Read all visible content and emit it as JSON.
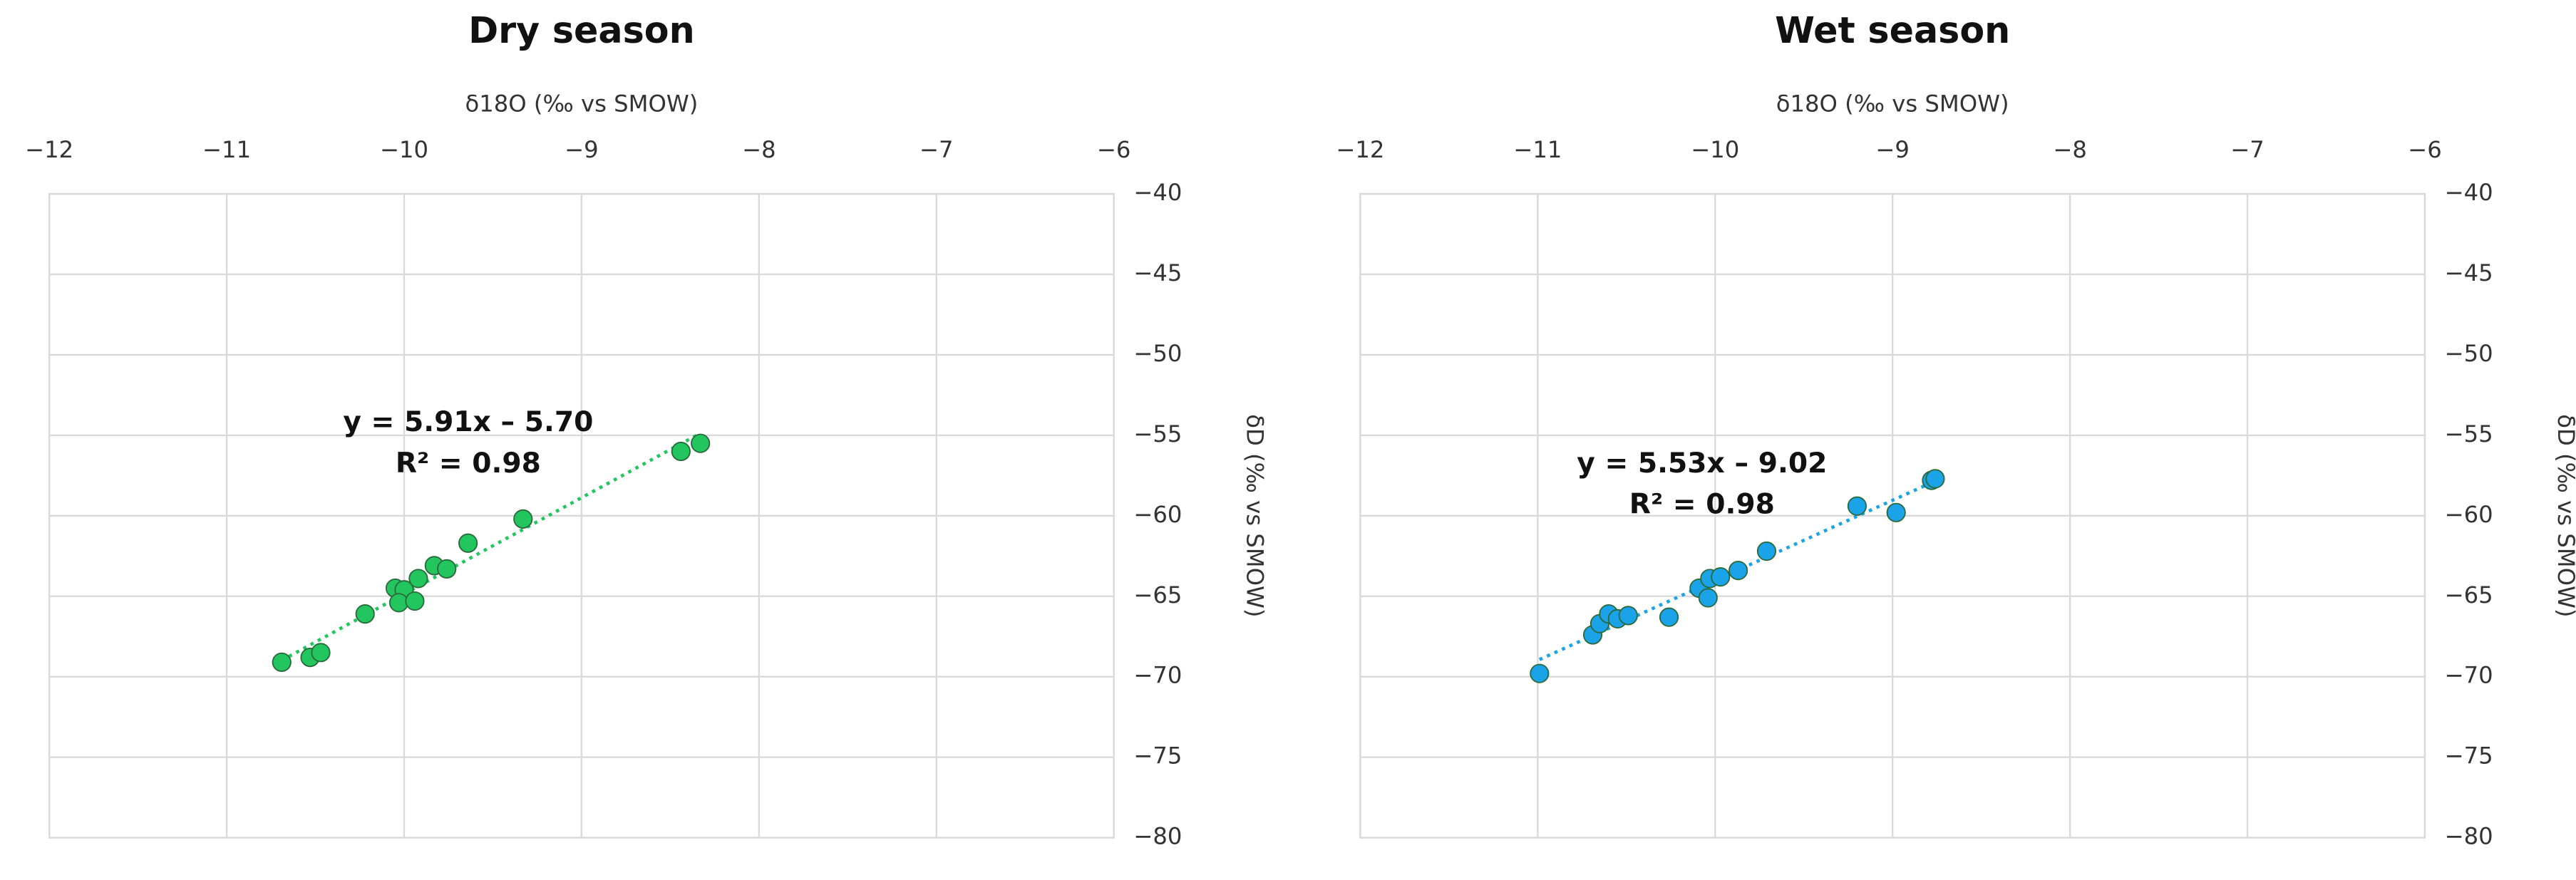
{
  "chart_data": [
    {
      "type": "scatter",
      "title": "Dry season",
      "x_label": "δ18O (‰ vs SMOW)",
      "y_label": "δD (‰ vs SMOW)",
      "equation": "y = 5.91x – 5.70",
      "r_squared": "R² = 0.98",
      "color": "#22c55e",
      "trendline": true,
      "grid": true,
      "x": [
        -10.69,
        -10.53,
        -10.47,
        -10.22,
        -10.05,
        -10.0,
        -10.03,
        -9.94,
        -9.92,
        -9.83,
        -9.76,
        -9.64,
        -9.33,
        -8.44,
        -8.33
      ],
      "values": [
        -69.1,
        -68.8,
        -68.5,
        -66.1,
        -64.5,
        -64.6,
        -65.4,
        -65.3,
        -63.9,
        -63.1,
        -63.3,
        -61.7,
        -60.2,
        -56.0,
        -55.5
      ],
      "xlim": [
        -12,
        -6
      ],
      "ylim": [
        -80,
        -40
      ],
      "xticks": [
        {
          "value": -12,
          "label": "−12"
        },
        {
          "value": -11,
          "label": "−11"
        },
        {
          "value": -10,
          "label": "−10"
        },
        {
          "value": -9,
          "label": "−9"
        },
        {
          "value": -8,
          "label": "−8"
        },
        {
          "value": -7,
          "label": "−7"
        },
        {
          "value": -6,
          "label": "−6"
        }
      ],
      "yticks": [
        {
          "value": -40,
          "label": "−40"
        },
        {
          "value": -45,
          "label": "−45"
        },
        {
          "value": -50,
          "label": "−50"
        },
        {
          "value": -55,
          "label": "−55"
        },
        {
          "value": -60,
          "label": "−60"
        },
        {
          "value": -65,
          "label": "−65"
        },
        {
          "value": -70,
          "label": "−70"
        },
        {
          "value": -75,
          "label": "−75"
        },
        {
          "value": -80,
          "label": "−80"
        }
      ]
    },
    {
      "type": "scatter",
      "title": "Wet season",
      "x_label": "δ18O (‰ vs SMOW)",
      "y_label": "δD (‰ vs SMOW)",
      "equation": "y = 5.53x – 9.02",
      "r_squared": "R² = 0.98",
      "color": "#1aa3e8",
      "trendline": true,
      "grid": true,
      "x": [
        -10.99,
        -10.69,
        -10.65,
        -10.6,
        -10.55,
        -10.49,
        -10.26,
        -10.09,
        -10.04,
        -10.03,
        -9.97,
        -9.87,
        -9.71,
        -9.2,
        -8.98,
        -8.78,
        -8.76
      ],
      "values": [
        -69.8,
        -67.4,
        -66.7,
        -66.1,
        -66.4,
        -66.2,
        -66.3,
        -64.5,
        -65.1,
        -63.9,
        -63.8,
        -63.4,
        -62.2,
        -59.4,
        -59.8,
        -57.8,
        -57.7
      ],
      "xlim": [
        -12,
        -6
      ],
      "ylim": [
        -80,
        -40
      ],
      "xticks": [
        {
          "value": -12,
          "label": "−12"
        },
        {
          "value": -11,
          "label": "−11"
        },
        {
          "value": -10,
          "label": "−10"
        },
        {
          "value": -9,
          "label": "−9"
        },
        {
          "value": -8,
          "label": "−8"
        },
        {
          "value": -7,
          "label": "−7"
        },
        {
          "value": -6,
          "label": "−6"
        }
      ],
      "yticks": [
        {
          "value": -40,
          "label": "−40"
        },
        {
          "value": -45,
          "label": "−45"
        },
        {
          "value": -50,
          "label": "−50"
        },
        {
          "value": -55,
          "label": "−55"
        },
        {
          "value": -60,
          "label": "−60"
        },
        {
          "value": -65,
          "label": "−65"
        },
        {
          "value": -70,
          "label": "−70"
        },
        {
          "value": -75,
          "label": "−75"
        },
        {
          "value": -80,
          "label": "−80"
        }
      ]
    }
  ]
}
